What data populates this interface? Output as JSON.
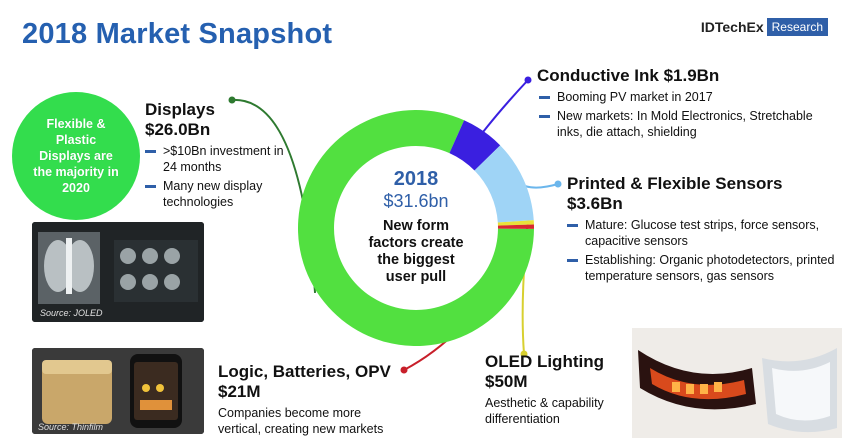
{
  "title": "2018 Market Snapshot",
  "logo": {
    "main": "IDTechEx",
    "box": "Research"
  },
  "callout": "Flexible & Plastic Displays are the majority in 2020",
  "center": {
    "year": "2018",
    "value": "$31.6bn",
    "note_lines": [
      "New form",
      "factors create",
      "the biggest",
      "user pull"
    ]
  },
  "segments": {
    "displays": {
      "name": "Displays",
      "value": "$26.0Bn",
      "bullets": [
        "&gt;$10Bn investment in 24 months",
        "Many new display technologies"
      ]
    },
    "conductive_ink": {
      "title": "Conductive Ink $1.9Bn",
      "bullets": [
        "Booming PV market in 2017",
        "New markets: In Mold Electronics, Stretchable inks, die attach, shielding"
      ]
    },
    "sensors": {
      "name": "Printed & Flexible Sensors",
      "value": "$3.6Bn",
      "bullets": [
        "Mature: Glucose test  strips, force sensors, capacitive sensors",
        "Establishing: Organic photodetectors, printed temperature sensors, gas sensors"
      ]
    },
    "oled": {
      "name": "OLED Lighting",
      "value": "$50M",
      "lines": [
        "Aesthetic & capability",
        "differentiation"
      ]
    },
    "logic": {
      "name": "Logic, Batteries, OPV",
      "value": "$21M",
      "lines": [
        "Companies become more",
        "vertical, creating new markets"
      ]
    }
  },
  "sources": {
    "joled": "Source: JOLED",
    "thinfilm": "Source: Thinfilm"
  },
  "chart_data": {
    "type": "pie",
    "title": "2018 Market Snapshot",
    "total_label": "$31.6bn",
    "unit": "USD billion",
    "slices": [
      {
        "name": "Displays",
        "value": 26.0,
        "color": "#52e040"
      },
      {
        "name": "Conductive Ink",
        "value": 1.9,
        "color": "#3a1fe0"
      },
      {
        "name": "Printed & Flexible Sensors",
        "value": 3.6,
        "color": "#9fd4f6"
      },
      {
        "name": "OLED Lighting",
        "value": 0.05,
        "color": "#e8e23a"
      },
      {
        "name": "Logic, Batteries, OPV",
        "value": 0.021,
        "color": "#d8282f"
      }
    ]
  }
}
